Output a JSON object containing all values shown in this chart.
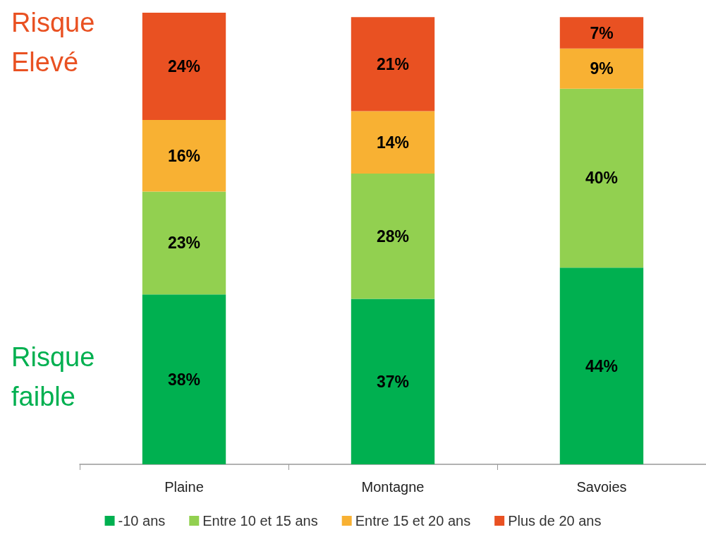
{
  "chart_data": {
    "type": "bar",
    "stacked": true,
    "categories": [
      "Plaine",
      "Montagne",
      "Savoies"
    ],
    "series": [
      {
        "name": "-10 ans",
        "color": "#00b050",
        "values": [
          38,
          37,
          44
        ],
        "value_labels": [
          "38%",
          "37%",
          "44%"
        ]
      },
      {
        "name": "Entre 10 et 15 ans",
        "color": "#92d050",
        "values": [
          23,
          28,
          40
        ],
        "value_labels": [
          "23%",
          "28%",
          "40%"
        ]
      },
      {
        "name": "Entre 15 et 20 ans",
        "color": "#f8b133",
        "values": [
          16,
          14,
          9
        ],
        "value_labels": [
          "16%",
          "14%",
          "9%"
        ]
      },
      {
        "name": "Plus de 20 ans",
        "color": "#e95122",
        "values": [
          24,
          21,
          7
        ],
        "value_labels": [
          "24%",
          "21%",
          "7%"
        ]
      }
    ],
    "legend": "bottom",
    "annotations": [
      "Risque Elevé",
      "Risque faible"
    ]
  }
}
